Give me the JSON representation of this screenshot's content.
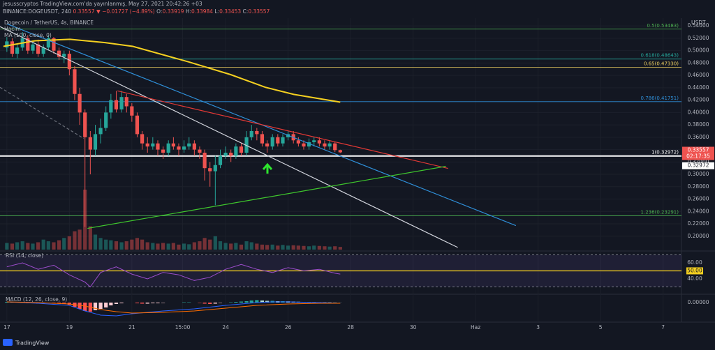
{
  "header": {
    "author_line": "jesusscryptos TradingView.com'da yayınlanmış, May 27, 2021 20:42:26 +03",
    "symbol": "BINANCE:DOGEUSDT, 240",
    "price": "0.33557",
    "change": "▼ −0.01727 (−4.89%)",
    "o_label": "O:",
    "o": "0.33919",
    "h_label": "H:",
    "h": "0.33984",
    "l_label": "L:",
    "l": "0.33453",
    "c_label": "C:",
    "c": "0.33557"
  },
  "chart_data": {
    "type": "candlestick",
    "title": "Dogecoin / TetherUS, 4s, BINANCE",
    "volume_label": "Hacim",
    "ma_label": "MA (100, close, 0)",
    "currency": "USDT",
    "up_color": "#26a69a",
    "down_color": "#ef5350",
    "x": [
      17,
      17.17,
      17.33,
      17.5,
      17.67,
      17.83,
      18,
      18.17,
      18.33,
      18.5,
      18.67,
      18.83,
      19,
      19.17,
      19.33,
      19.5,
      19.67,
      19.83,
      20,
      20.17,
      20.33,
      20.5,
      20.67,
      20.83,
      21,
      21.17,
      21.33,
      21.5,
      21.67,
      21.83,
      22,
      22.17,
      22.33,
      22.5,
      22.67,
      22.83,
      23,
      23.17,
      23.33,
      23.5,
      23.67,
      23.83,
      24,
      24.17,
      24.33,
      24.5,
      24.67,
      24.83,
      25,
      25.17,
      25.33,
      25.5,
      25.67,
      25.83,
      26,
      26.17,
      26.33,
      26.5,
      26.67,
      26.83,
      27,
      27.17,
      27.33,
      27.5,
      27.67
    ],
    "open": [
      0.505,
      0.515,
      0.495,
      0.505,
      0.52,
      0.5,
      0.51,
      0.495,
      0.505,
      0.52,
      0.5,
      0.49,
      0.495,
      0.47,
      0.43,
      0.4,
      0.36,
      0.34,
      0.365,
      0.375,
      0.4,
      0.42,
      0.405,
      0.425,
      0.41,
      0.395,
      0.365,
      0.35,
      0.345,
      0.35,
      0.34,
      0.335,
      0.35,
      0.345,
      0.34,
      0.345,
      0.35,
      0.34,
      0.335,
      0.31,
      0.305,
      0.315,
      0.33,
      0.335,
      0.33,
      0.345,
      0.335,
      0.36,
      0.37,
      0.365,
      0.35,
      0.345,
      0.36,
      0.35,
      0.36,
      0.365,
      0.355,
      0.35,
      0.345,
      0.352,
      0.355,
      0.35,
      0.345,
      0.35,
      0.33919
    ],
    "high": [
      0.522,
      0.52,
      0.512,
      0.53,
      0.525,
      0.515,
      0.518,
      0.51,
      0.525,
      0.522,
      0.505,
      0.5,
      0.5,
      0.475,
      0.44,
      0.405,
      0.37,
      0.38,
      0.39,
      0.41,
      0.43,
      0.435,
      0.435,
      0.43,
      0.415,
      0.4,
      0.37,
      0.36,
      0.36,
      0.355,
      0.345,
      0.355,
      0.36,
      0.35,
      0.355,
      0.36,
      0.355,
      0.345,
      0.34,
      0.32,
      0.33,
      0.34,
      0.345,
      0.34,
      0.35,
      0.35,
      0.37,
      0.38,
      0.375,
      0.37,
      0.355,
      0.365,
      0.365,
      0.365,
      0.37,
      0.37,
      0.36,
      0.355,
      0.358,
      0.36,
      0.36,
      0.355,
      0.355,
      0.352,
      0.33984
    ],
    "low": [
      0.498,
      0.49,
      0.488,
      0.5,
      0.495,
      0.495,
      0.49,
      0.49,
      0.5,
      0.495,
      0.485,
      0.48,
      0.46,
      0.42,
      0.38,
      0.215,
      0.3,
      0.33,
      0.35,
      0.37,
      0.39,
      0.4,
      0.4,
      0.4,
      0.385,
      0.36,
      0.34,
      0.335,
      0.34,
      0.33,
      0.325,
      0.33,
      0.34,
      0.33,
      0.335,
      0.34,
      0.33,
      0.325,
      0.29,
      0.28,
      0.25,
      0.31,
      0.325,
      0.32,
      0.325,
      0.33,
      0.33,
      0.355,
      0.355,
      0.345,
      0.335,
      0.34,
      0.345,
      0.345,
      0.355,
      0.35,
      0.345,
      0.34,
      0.34,
      0.345,
      0.345,
      0.34,
      0.34,
      0.336,
      0.33453
    ],
    "close": [
      0.515,
      0.495,
      0.505,
      0.52,
      0.5,
      0.51,
      0.495,
      0.505,
      0.52,
      0.5,
      0.49,
      0.495,
      0.47,
      0.43,
      0.4,
      0.36,
      0.34,
      0.365,
      0.375,
      0.4,
      0.42,
      0.405,
      0.425,
      0.41,
      0.395,
      0.365,
      0.35,
      0.345,
      0.35,
      0.34,
      0.335,
      0.35,
      0.345,
      0.34,
      0.345,
      0.35,
      0.34,
      0.335,
      0.31,
      0.305,
      0.315,
      0.33,
      0.335,
      0.33,
      0.345,
      0.335,
      0.36,
      0.37,
      0.365,
      0.35,
      0.345,
      0.36,
      0.35,
      0.36,
      0.365,
      0.355,
      0.35,
      0.345,
      0.352,
      0.355,
      0.35,
      0.345,
      0.35,
      0.33919,
      0.33557
    ],
    "volume": [
      20,
      18,
      22,
      25,
      20,
      18,
      22,
      30,
      25,
      22,
      28,
      35,
      40,
      55,
      60,
      180,
      70,
      45,
      35,
      30,
      28,
      25,
      22,
      25,
      30,
      35,
      30,
      22,
      20,
      18,
      20,
      18,
      20,
      15,
      18,
      16,
      22,
      25,
      35,
      30,
      40,
      25,
      20,
      18,
      20,
      15,
      25,
      22,
      18,
      15,
      14,
      15,
      12,
      14,
      12,
      13,
      12,
      11,
      10,
      12,
      11,
      10,
      9,
      10,
      8
    ],
    "xlim": [
      16.78,
      38.59
    ],
    "xticks": [
      17,
      19,
      21,
      {
        "value": 22.625,
        "label": "15:00"
      },
      24,
      26,
      28,
      30,
      {
        "value": 32,
        "label": "Haz"
      },
      {
        "value": 34,
        "label": "3"
      },
      {
        "value": 36,
        "label": "5"
      },
      {
        "value": 38,
        "label": "7"
      }
    ],
    "ylim": [
      0.1783,
      0.5526
    ],
    "yticks": [
      {
        "value": 0.2,
        "label": "0.20000"
      },
      {
        "value": 0.22,
        "label": "0.22000"
      },
      {
        "value": 0.24,
        "label": "0.24000"
      },
      {
        "value": 0.26,
        "label": "0.26000"
      },
      {
        "value": 0.28,
        "label": "0.28000"
      },
      {
        "value": 0.3,
        "label": "0.30000"
      },
      {
        "value": 0.32,
        "label": "0.32000"
      },
      {
        "value": 0.34,
        "label": "0.34000"
      },
      {
        "value": 0.36,
        "label": "0.36000"
      },
      {
        "value": 0.38,
        "label": "0.38000"
      },
      {
        "value": 0.4,
        "label": "0.40000"
      },
      {
        "value": 0.42,
        "label": "0.42000"
      },
      {
        "value": 0.44,
        "label": "0.44000"
      },
      {
        "value": 0.46,
        "label": "0.46000"
      },
      {
        "value": 0.48,
        "label": "0.48000"
      },
      {
        "value": 0.5,
        "label": "0.50000"
      },
      {
        "value": 0.52,
        "label": "0.52000"
      },
      {
        "value": 0.54,
        "label": "0.54000"
      }
    ],
    "ma": {
      "color": "#f5d020",
      "x": [
        16.89,
        17.9,
        19.02,
        20.14,
        21.03,
        22.82,
        24.16,
        25.28,
        26.18,
        27.67
      ],
      "values": [
        0.5069,
        0.516,
        0.5183,
        0.513,
        0.5069,
        0.4818,
        0.4613,
        0.4407,
        0.4293,
        0.4168
      ]
    },
    "trend_lines": [
      {
        "color": "#d1d4dc",
        "x": [
          16.78,
          31.43
        ],
        "values": [
          0.5389,
          0.1818
        ]
      },
      {
        "color": "#2f8fd8",
        "x": [
          17.0,
          33.29
        ],
        "values": [
          0.5434,
          0.2171
        ]
      },
      {
        "color": "#e53935",
        "x": [
          20.54,
          31.12
        ],
        "values": [
          0.435,
          0.3096
        ]
      },
      {
        "color": "#3fc72d",
        "x": [
          19.58,
          31.05
        ],
        "values": [
          0.2126,
          0.313
        ]
      },
      {
        "color": "#6b6f7a",
        "dashed": true,
        "x": [
          16.78,
          19.46
        ],
        "values": [
          0.4407,
          0.358
        ]
      }
    ],
    "levels": [
      {
        "value": 0.53483,
        "label": "0.5(0.53483)",
        "color": "#4caf50"
      },
      {
        "value": 0.48643,
        "label": "0.618(0.48643)",
        "color": "#26a69a"
      },
      {
        "value": 0.4733,
        "label": "0.65(0.47330)",
        "color": "#f0d060"
      },
      {
        "value": 0.41751,
        "label": "0.786(0.41751)",
        "color": "#2f8fd8"
      },
      {
        "value": 0.32972,
        "label": "1(0.32972)",
        "color": "#ffffff"
      },
      {
        "value": 0.23291,
        "label": "1.236(0.23291)",
        "color": "#4caf50"
      }
    ],
    "last_price": 0.33557,
    "countdown": "02:17:35",
    "level_marker": 0.32972,
    "rsi": {
      "label": "RSI (14, close)",
      "color": "#9c4dcc",
      "ylim": [
        21.7,
        73.9
      ],
      "band": [
        30,
        70
      ],
      "yticks": [
        {
          "value": 40,
          "label": "40.00"
        },
        {
          "value": 60,
          "label": "60.00"
        }
      ],
      "level": {
        "value": 50,
        "label": "50.00",
        "color": "#f5d020"
      },
      "x": [
        17,
        17.5,
        18,
        18.5,
        19,
        19.5,
        19.67,
        20,
        20.5,
        21,
        21.5,
        22,
        22.5,
        23,
        23.5,
        24,
        24.5,
        25,
        25.5,
        26,
        26.5,
        27,
        27.5,
        27.67
      ],
      "values": [
        55,
        60,
        52,
        57,
        45,
        36,
        30,
        48,
        55,
        46,
        40,
        48,
        45,
        38,
        42,
        52,
        58,
        52,
        48,
        54,
        50,
        52,
        47,
        46
      ]
    },
    "macd": {
      "label": "MACD (12, 26, close, 9)",
      "ylim": [
        -0.028,
        0.011
      ],
      "yticks": [
        {
          "value": 0,
          "label": "0.00000"
        }
      ],
      "histogram_colors": [
        "#26a69a",
        "#b2dfdb",
        "#ffcdd2",
        "#ff5252"
      ],
      "histogram": [
        0.001,
        0.0005,
        0,
        -0.0005,
        -0.001,
        -0.001,
        -0.0015,
        -0.001,
        0,
        -0.0005,
        -0.001,
        -0.0015,
        -0.003,
        -0.006,
        -0.009,
        -0.012,
        -0.013,
        -0.011,
        -0.009,
        -0.007,
        -0.004,
        -0.002,
        -0.001,
        0,
        0,
        -0.001,
        -0.0015,
        -0.0015,
        -0.001,
        -0.001,
        -0.0005,
        0,
        0,
        0,
        0.0005,
        0.0005,
        0,
        -0.0005,
        -0.0015,
        -0.002,
        -0.0015,
        -0.0005,
        0,
        0.0005,
        0.001,
        0.0015,
        0.002,
        0.003,
        0.0035,
        0.003,
        0.0025,
        0.0025,
        0.002,
        0.002,
        0.0018,
        0.0015,
        0.0012,
        0.001,
        0.0008,
        0.0007,
        0.0005,
        0.0004,
        0.0003,
        0.0002,
        0.0001
      ],
      "macd_color": "#2962ff",
      "macd_x": [
        17,
        18,
        19,
        19.5,
        20,
        20.5,
        21,
        22,
        23,
        24,
        25,
        25.5,
        26,
        27,
        27.67
      ],
      "macd_values": [
        0.001,
        -0.001,
        -0.004,
        -0.012,
        -0.018,
        -0.019,
        -0.016,
        -0.012,
        -0.009,
        -0.004,
        0,
        0.001,
        0.001,
        0,
        -0.001
      ],
      "signal_color": "#ff6d00",
      "signal_x": [
        17,
        18,
        19,
        19.5,
        20,
        20.5,
        21,
        22,
        23,
        24,
        25,
        26,
        27,
        27.67
      ],
      "signal_values": [
        0.001,
        0,
        -0.002,
        -0.005,
        -0.01,
        -0.013,
        -0.015,
        -0.014,
        -0.012,
        -0.008,
        -0.004,
        -0.002,
        -0.001,
        -0.001
      ]
    }
  },
  "footer": {
    "brand": "TradingView"
  }
}
